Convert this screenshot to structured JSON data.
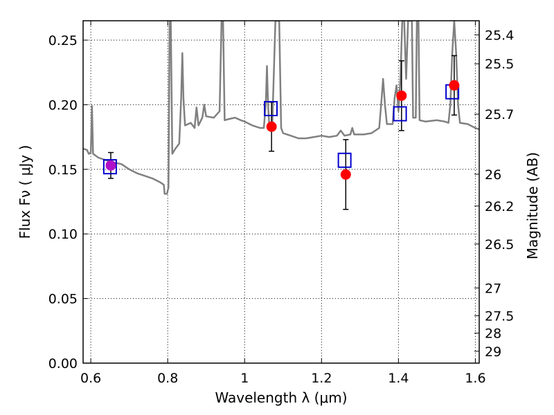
{
  "chart_data": {
    "type": "scatter",
    "title": "",
    "xlabel": "Wavelength  λ (μm)",
    "ylabel": "Flux  Fν  ( μJy )",
    "y2label": "Magnitude (AB)",
    "xlim": [
      0.58,
      1.61
    ],
    "ylim": [
      0.0,
      0.265
    ],
    "grid": true,
    "x_ticks": [
      {
        "value": 0.6,
        "label": "0.6"
      },
      {
        "value": 0.8,
        "label": "0.8"
      },
      {
        "value": 1.0,
        "label": "1"
      },
      {
        "value": 1.2,
        "label": "1.2"
      },
      {
        "value": 1.4,
        "label": "1.4"
      },
      {
        "value": 1.6,
        "label": "1.6"
      }
    ],
    "y_ticks": [
      {
        "value": 0.0,
        "label": "0.00"
      },
      {
        "value": 0.05,
        "label": "0.05"
      },
      {
        "value": 0.1,
        "label": "0.10"
      },
      {
        "value": 0.15,
        "label": "0.15"
      },
      {
        "value": 0.2,
        "label": "0.20"
      },
      {
        "value": 0.25,
        "label": "0.25"
      }
    ],
    "mag_ticks": [
      {
        "label": "25.4",
        "flux": 0.2541
      },
      {
        "label": "25.5",
        "flux": 0.2317
      },
      {
        "label": "25.7",
        "flux": 0.1927
      },
      {
        "label": "26",
        "flux": 0.1462
      },
      {
        "label": "26.2",
        "flux": 0.1216
      },
      {
        "label": "26.5",
        "flux": 0.0922
      },
      {
        "label": "27",
        "flux": 0.0582
      },
      {
        "label": "27.5",
        "flux": 0.0367
      },
      {
        "label": "28",
        "flux": 0.0232
      },
      {
        "label": "29",
        "flux": 0.0092
      }
    ],
    "series": [
      {
        "kind": "line",
        "color": "#808080",
        "points": [
          [
            0.58,
            0.166
          ],
          [
            0.59,
            0.165
          ],
          [
            0.595,
            0.162
          ],
          [
            0.6,
            0.163
          ],
          [
            0.603,
            0.199
          ],
          [
            0.606,
            0.162
          ],
          [
            0.62,
            0.159
          ],
          [
            0.65,
            0.156
          ],
          [
            0.68,
            0.154
          ],
          [
            0.7,
            0.15
          ],
          [
            0.72,
            0.147
          ],
          [
            0.74,
            0.145
          ],
          [
            0.76,
            0.143
          ],
          [
            0.78,
            0.14
          ],
          [
            0.79,
            0.138
          ],
          [
            0.792,
            0.131
          ],
          [
            0.798,
            0.131
          ],
          [
            0.802,
            0.136
          ],
          [
            0.805,
            0.265
          ],
          [
            0.808,
            0.265
          ],
          [
            0.812,
            0.162
          ],
          [
            0.82,
            0.166
          ],
          [
            0.83,
            0.17
          ],
          [
            0.835,
            0.205
          ],
          [
            0.838,
            0.24
          ],
          [
            0.841,
            0.205
          ],
          [
            0.845,
            0.184
          ],
          [
            0.86,
            0.186
          ],
          [
            0.87,
            0.182
          ],
          [
            0.875,
            0.198
          ],
          [
            0.88,
            0.184
          ],
          [
            0.89,
            0.19
          ],
          [
            0.895,
            0.2
          ],
          [
            0.9,
            0.191
          ],
          [
            0.92,
            0.19
          ],
          [
            0.935,
            0.195
          ],
          [
            0.94,
            0.265
          ],
          [
            0.944,
            0.265
          ],
          [
            0.948,
            0.188
          ],
          [
            0.96,
            0.189
          ],
          [
            0.975,
            0.19
          ],
          [
            0.99,
            0.188
          ],
          [
            1.0,
            0.187
          ],
          [
            1.02,
            0.184
          ],
          [
            1.04,
            0.182
          ],
          [
            1.05,
            0.182
          ],
          [
            1.055,
            0.2
          ],
          [
            1.058,
            0.23
          ],
          [
            1.061,
            0.2
          ],
          [
            1.065,
            0.18
          ],
          [
            1.072,
            0.185
          ],
          [
            1.08,
            0.265
          ],
          [
            1.09,
            0.265
          ],
          [
            1.095,
            0.182
          ],
          [
            1.1,
            0.178
          ],
          [
            1.12,
            0.176
          ],
          [
            1.14,
            0.174
          ],
          [
            1.16,
            0.174
          ],
          [
            1.18,
            0.175
          ],
          [
            1.2,
            0.176
          ],
          [
            1.22,
            0.175
          ],
          [
            1.24,
            0.176
          ],
          [
            1.25,
            0.18
          ],
          [
            1.26,
            0.176
          ],
          [
            1.275,
            0.177
          ],
          [
            1.28,
            0.182
          ],
          [
            1.285,
            0.177
          ],
          [
            1.31,
            0.177
          ],
          [
            1.33,
            0.178
          ],
          [
            1.35,
            0.182
          ],
          [
            1.355,
            0.2
          ],
          [
            1.36,
            0.22
          ],
          [
            1.365,
            0.2
          ],
          [
            1.37,
            0.185
          ],
          [
            1.385,
            0.185
          ],
          [
            1.39,
            0.205
          ],
          [
            1.395,
            0.215
          ],
          [
            1.4,
            0.195
          ],
          [
            1.405,
            0.22
          ],
          [
            1.41,
            0.265
          ],
          [
            1.415,
            0.265
          ],
          [
            1.42,
            0.22
          ],
          [
            1.425,
            0.265
          ],
          [
            1.435,
            0.265
          ],
          [
            1.438,
            0.19
          ],
          [
            1.445,
            0.19
          ],
          [
            1.448,
            0.265
          ],
          [
            1.452,
            0.265
          ],
          [
            1.455,
            0.188
          ],
          [
            1.47,
            0.187
          ],
          [
            1.5,
            0.188
          ],
          [
            1.52,
            0.187
          ],
          [
            1.53,
            0.186
          ],
          [
            1.535,
            0.2
          ],
          [
            1.54,
            0.24
          ],
          [
            1.545,
            0.265
          ],
          [
            1.55,
            0.24
          ],
          [
            1.555,
            0.2
          ],
          [
            1.56,
            0.186
          ],
          [
            1.58,
            0.185
          ],
          [
            1.6,
            0.182
          ],
          [
            1.61,
            0.181
          ]
        ]
      },
      {
        "kind": "observed",
        "marker": "circle",
        "color": "#ff0000",
        "points": [
          {
            "x": 0.652,
            "y": 0.153,
            "err": 0.01,
            "color": "#b010c8"
          },
          {
            "x": 1.07,
            "y": 0.183,
            "err": 0.019
          },
          {
            "x": 1.263,
            "y": 0.146,
            "err": 0.027
          },
          {
            "x": 1.408,
            "y": 0.207,
            "err": 0.027
          },
          {
            "x": 1.545,
            "y": 0.215,
            "err": 0.023
          }
        ]
      },
      {
        "kind": "model",
        "marker": "square",
        "color": "#0000cc",
        "points": [
          {
            "x": 0.65,
            "y": 0.152
          },
          {
            "x": 1.068,
            "y": 0.197
          },
          {
            "x": 1.26,
            "y": 0.157
          },
          {
            "x": 1.404,
            "y": 0.193
          },
          {
            "x": 1.54,
            "y": 0.21
          }
        ]
      }
    ]
  }
}
